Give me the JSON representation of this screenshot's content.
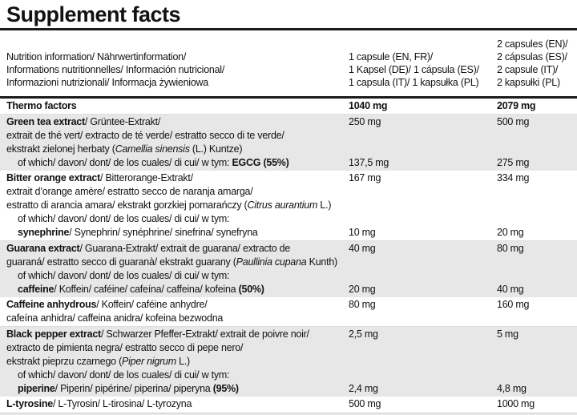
{
  "title": "Supplement facts",
  "colors": {
    "shaded_row": "#e7e7e7",
    "rule": "#1b1b1b",
    "text": "#121212",
    "bottom_strip": "#e9e9e9"
  },
  "header": {
    "nutrition_info_lines": [
      "Nutrition information/ Nährwertinformation/",
      "Informations nutritionnelles/ Información nutricional/",
      "Informazioni nutrizionali/ Informacja żywieniowa"
    ],
    "serving1_lines": [
      "1 capsule (EN, FR)/",
      "1 Kapsel (DE)/ 1 cápsula (ES)/",
      "1 capsula (IT)/ 1 kapsułka (PL)"
    ],
    "serving2_lines": [
      "2 capsules (EN)/",
      "2 cápsulas (ES)/",
      "2 capsule (IT)/",
      "2 kapsułki (PL)"
    ]
  },
  "rows": [
    {
      "name": "thermo-factors",
      "shaded": false,
      "bold_values": true,
      "lines": [
        {
          "segs": [
            {
              "t": "Thermo factors",
              "b": true
            }
          ]
        }
      ],
      "values": [
        {
          "line": 0,
          "per1": "1040 mg",
          "per2": "2079 mg"
        }
      ]
    },
    {
      "name": "green-tea-extract",
      "shaded": true,
      "lines": [
        {
          "segs": [
            {
              "t": "Green tea extract",
              "b": true
            },
            {
              "t": "/ Grüntee-Extrakt/"
            }
          ]
        },
        {
          "segs": [
            {
              "t": "extrait de thé vert/ extracto de té verde/ estratto secco di te verde/"
            }
          ]
        },
        {
          "segs": [
            {
              "t": "ekstrakt zielonej herbaty ("
            },
            {
              "t": "Camellia sinensis",
              "i": true
            },
            {
              "t": " (L.) Kuntze)"
            }
          ]
        },
        {
          "indent": true,
          "segs": [
            {
              "t": "of which/ davon/ dont/ de los cuales/ di cui/ w tym: "
            },
            {
              "t": "EGCG (55%)",
              "b": true
            }
          ]
        }
      ],
      "values": [
        {
          "line": 0,
          "per1": "250 mg",
          "per2": "500 mg"
        },
        {
          "line": 3,
          "per1": "137,5 mg",
          "per2": "275 mg"
        }
      ]
    },
    {
      "name": "bitter-orange-extract",
      "shaded": false,
      "lines": [
        {
          "segs": [
            {
              "t": "Bitter orange extract",
              "b": true
            },
            {
              "t": "/ Bitterorange-Extrakt/"
            }
          ]
        },
        {
          "segs": [
            {
              "t": "extrait d’orange amère/ estratto secco de naranja amarga/"
            }
          ]
        },
        {
          "segs": [
            {
              "t": "estratto di arancia amara/ ekstrakt gorzkiej pomarańczy ("
            },
            {
              "t": "Citrus aurantium",
              "i": true
            },
            {
              "t": " L.)"
            }
          ]
        },
        {
          "indent": true,
          "segs": [
            {
              "t": "of which/ davon/ dont/ de los cuales/ di cui/ w tym:"
            }
          ]
        },
        {
          "indent": true,
          "segs": [
            {
              "t": "synephrine",
              "b": true
            },
            {
              "t": "/ Synephrin/ synéphrine/ sinefrina/ synefryna"
            }
          ]
        }
      ],
      "values": [
        {
          "line": 0,
          "per1": "167 mg",
          "per2": "334 mg"
        },
        {
          "line": 4,
          "per1": "10 mg",
          "per2": "20 mg"
        }
      ]
    },
    {
      "name": "guarana-extract",
      "shaded": true,
      "lines": [
        {
          "segs": [
            {
              "t": "Guarana extract",
              "b": true
            },
            {
              "t": "/ Guarana-Extrakt/ extrait de guarana/ extracto de"
            }
          ]
        },
        {
          "segs": [
            {
              "t": "guaraná/ estratto secco di guaranà/ ekstrakt guarany ("
            },
            {
              "t": "Paullinia cupana",
              "i": true
            },
            {
              "t": " Kunth)"
            }
          ]
        },
        {
          "indent": true,
          "segs": [
            {
              "t": "of which/ davon/ dont/ de los cuales/ di cui/ w tym:"
            }
          ]
        },
        {
          "indent": true,
          "segs": [
            {
              "t": "caffeine",
              "b": true
            },
            {
              "t": "/ Koffein/ caféine/ cafeína/ caffeina/ kofeina "
            },
            {
              "t": "(50%)",
              "b": true
            }
          ]
        }
      ],
      "values": [
        {
          "line": 0,
          "per1": "40 mg",
          "per2": "80 mg"
        },
        {
          "line": 3,
          "per1": "20 mg",
          "per2": "40 mg"
        }
      ]
    },
    {
      "name": "caffeine-anhydrous",
      "shaded": false,
      "lines": [
        {
          "segs": [
            {
              "t": "Caffeine anhydrous",
              "b": true
            },
            {
              "t": "/ Koffein/ caféine anhydre/"
            }
          ]
        },
        {
          "segs": [
            {
              "t": "cafeína anhidra/ caffeina anidra/ kofeina bezwodna"
            }
          ]
        }
      ],
      "values": [
        {
          "line": 0,
          "per1": "80 mg",
          "per2": "160 mg"
        }
      ]
    },
    {
      "name": "black-pepper-extract",
      "shaded": true,
      "lines": [
        {
          "segs": [
            {
              "t": "Black pepper extract",
              "b": true
            },
            {
              "t": "/ Schwarzer Pfeffer-Extrakt/ extrait de poivre noir/"
            }
          ]
        },
        {
          "segs": [
            {
              "t": "extracto de pimienta negra/ estratto secco di pepe nero/"
            }
          ]
        },
        {
          "segs": [
            {
              "t": "ekstrakt pieprzu czarnego ("
            },
            {
              "t": "Piper nigrum",
              "i": true
            },
            {
              "t": " L.)"
            }
          ]
        },
        {
          "indent": true,
          "segs": [
            {
              "t": "of which/ davon/ dont/ de los cuales/ di cui/ w tym:"
            }
          ]
        },
        {
          "indent": true,
          "segs": [
            {
              "t": "piperine",
              "b": true
            },
            {
              "t": "/ Piperin/ pipérine/ piperina/ piperyna "
            },
            {
              "t": "(95%)",
              "b": true
            }
          ]
        }
      ],
      "values": [
        {
          "line": 0,
          "per1": "2,5 mg",
          "per2": "5 mg"
        },
        {
          "line": 4,
          "per1": "2,4 mg",
          "per2": "4,8 mg"
        }
      ]
    },
    {
      "name": "l-tyrosine",
      "shaded": false,
      "lines": [
        {
          "segs": [
            {
              "t": "L-tyrosine",
              "b": true
            },
            {
              "t": "/ L-Tyrosin/ L-tirosina/ L-tyrozyna"
            }
          ]
        }
      ],
      "values": [
        {
          "line": 0,
          "per1": "500 mg",
          "per2": "1000 mg"
        }
      ]
    }
  ]
}
